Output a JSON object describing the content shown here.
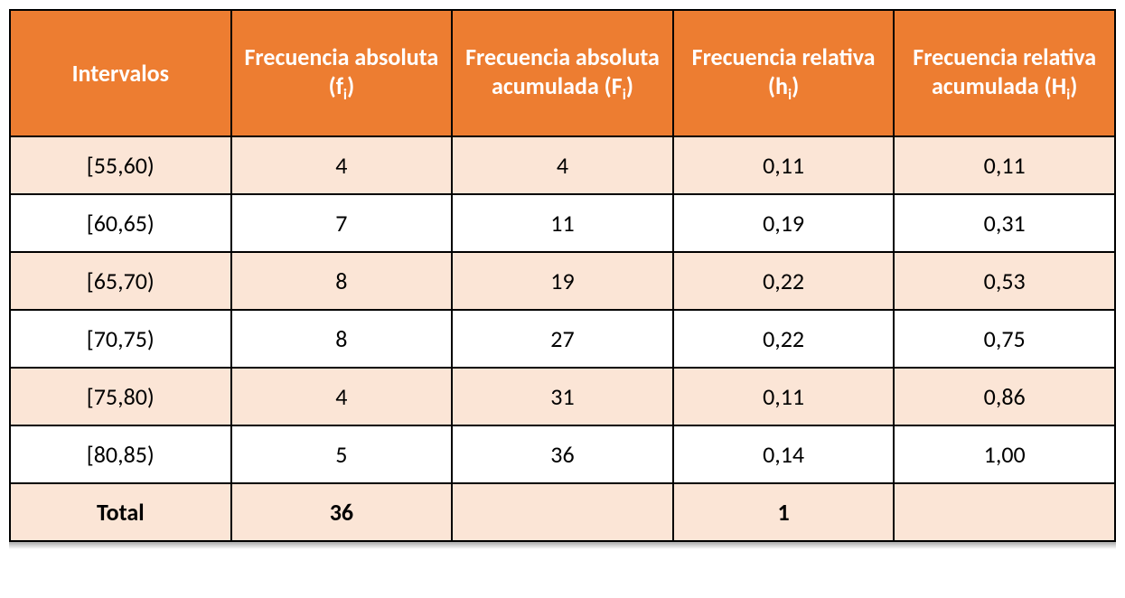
{
  "table": {
    "type": "table",
    "header_bg": "#ed7d31",
    "header_color": "#ffffff",
    "row_odd_bg": "#fbe5d6",
    "row_even_bg": "#ffffff",
    "border_color": "#000000",
    "header_fontsize": 26,
    "cell_fontsize": 26,
    "columns": [
      {
        "label": "Intervalos",
        "sub": ""
      },
      {
        "label": "Frecuencia absoluta (f",
        "sub": "i",
        "tail": ")"
      },
      {
        "label": "Frecuencia absoluta acumulada (F",
        "sub": "i",
        "tail": ")"
      },
      {
        "label": "Frecuencia relativa (h",
        "sub": "i",
        "tail": ")"
      },
      {
        "label": "Frecuencia relativa acumulada (H",
        "sub": "i",
        "tail": ")"
      }
    ],
    "rows": [
      {
        "cells": [
          "[55,60)",
          "4",
          "4",
          "0,11",
          "0,11"
        ]
      },
      {
        "cells": [
          "[60,65)",
          "7",
          "11",
          "0,19",
          "0,31"
        ]
      },
      {
        "cells": [
          "[65,70)",
          "8",
          "19",
          "0,22",
          "0,53"
        ]
      },
      {
        "cells": [
          "[70,75)",
          "8",
          "27",
          "0,22",
          "0,75"
        ]
      },
      {
        "cells": [
          "[75,80)",
          "4",
          "31",
          "0,11",
          "0,86"
        ]
      },
      {
        "cells": [
          "[80,85)",
          "5",
          "36",
          "0,14",
          "1,00"
        ]
      }
    ],
    "total": {
      "label": "Total",
      "cells": [
        "Total",
        "36",
        "",
        "1",
        ""
      ]
    }
  }
}
